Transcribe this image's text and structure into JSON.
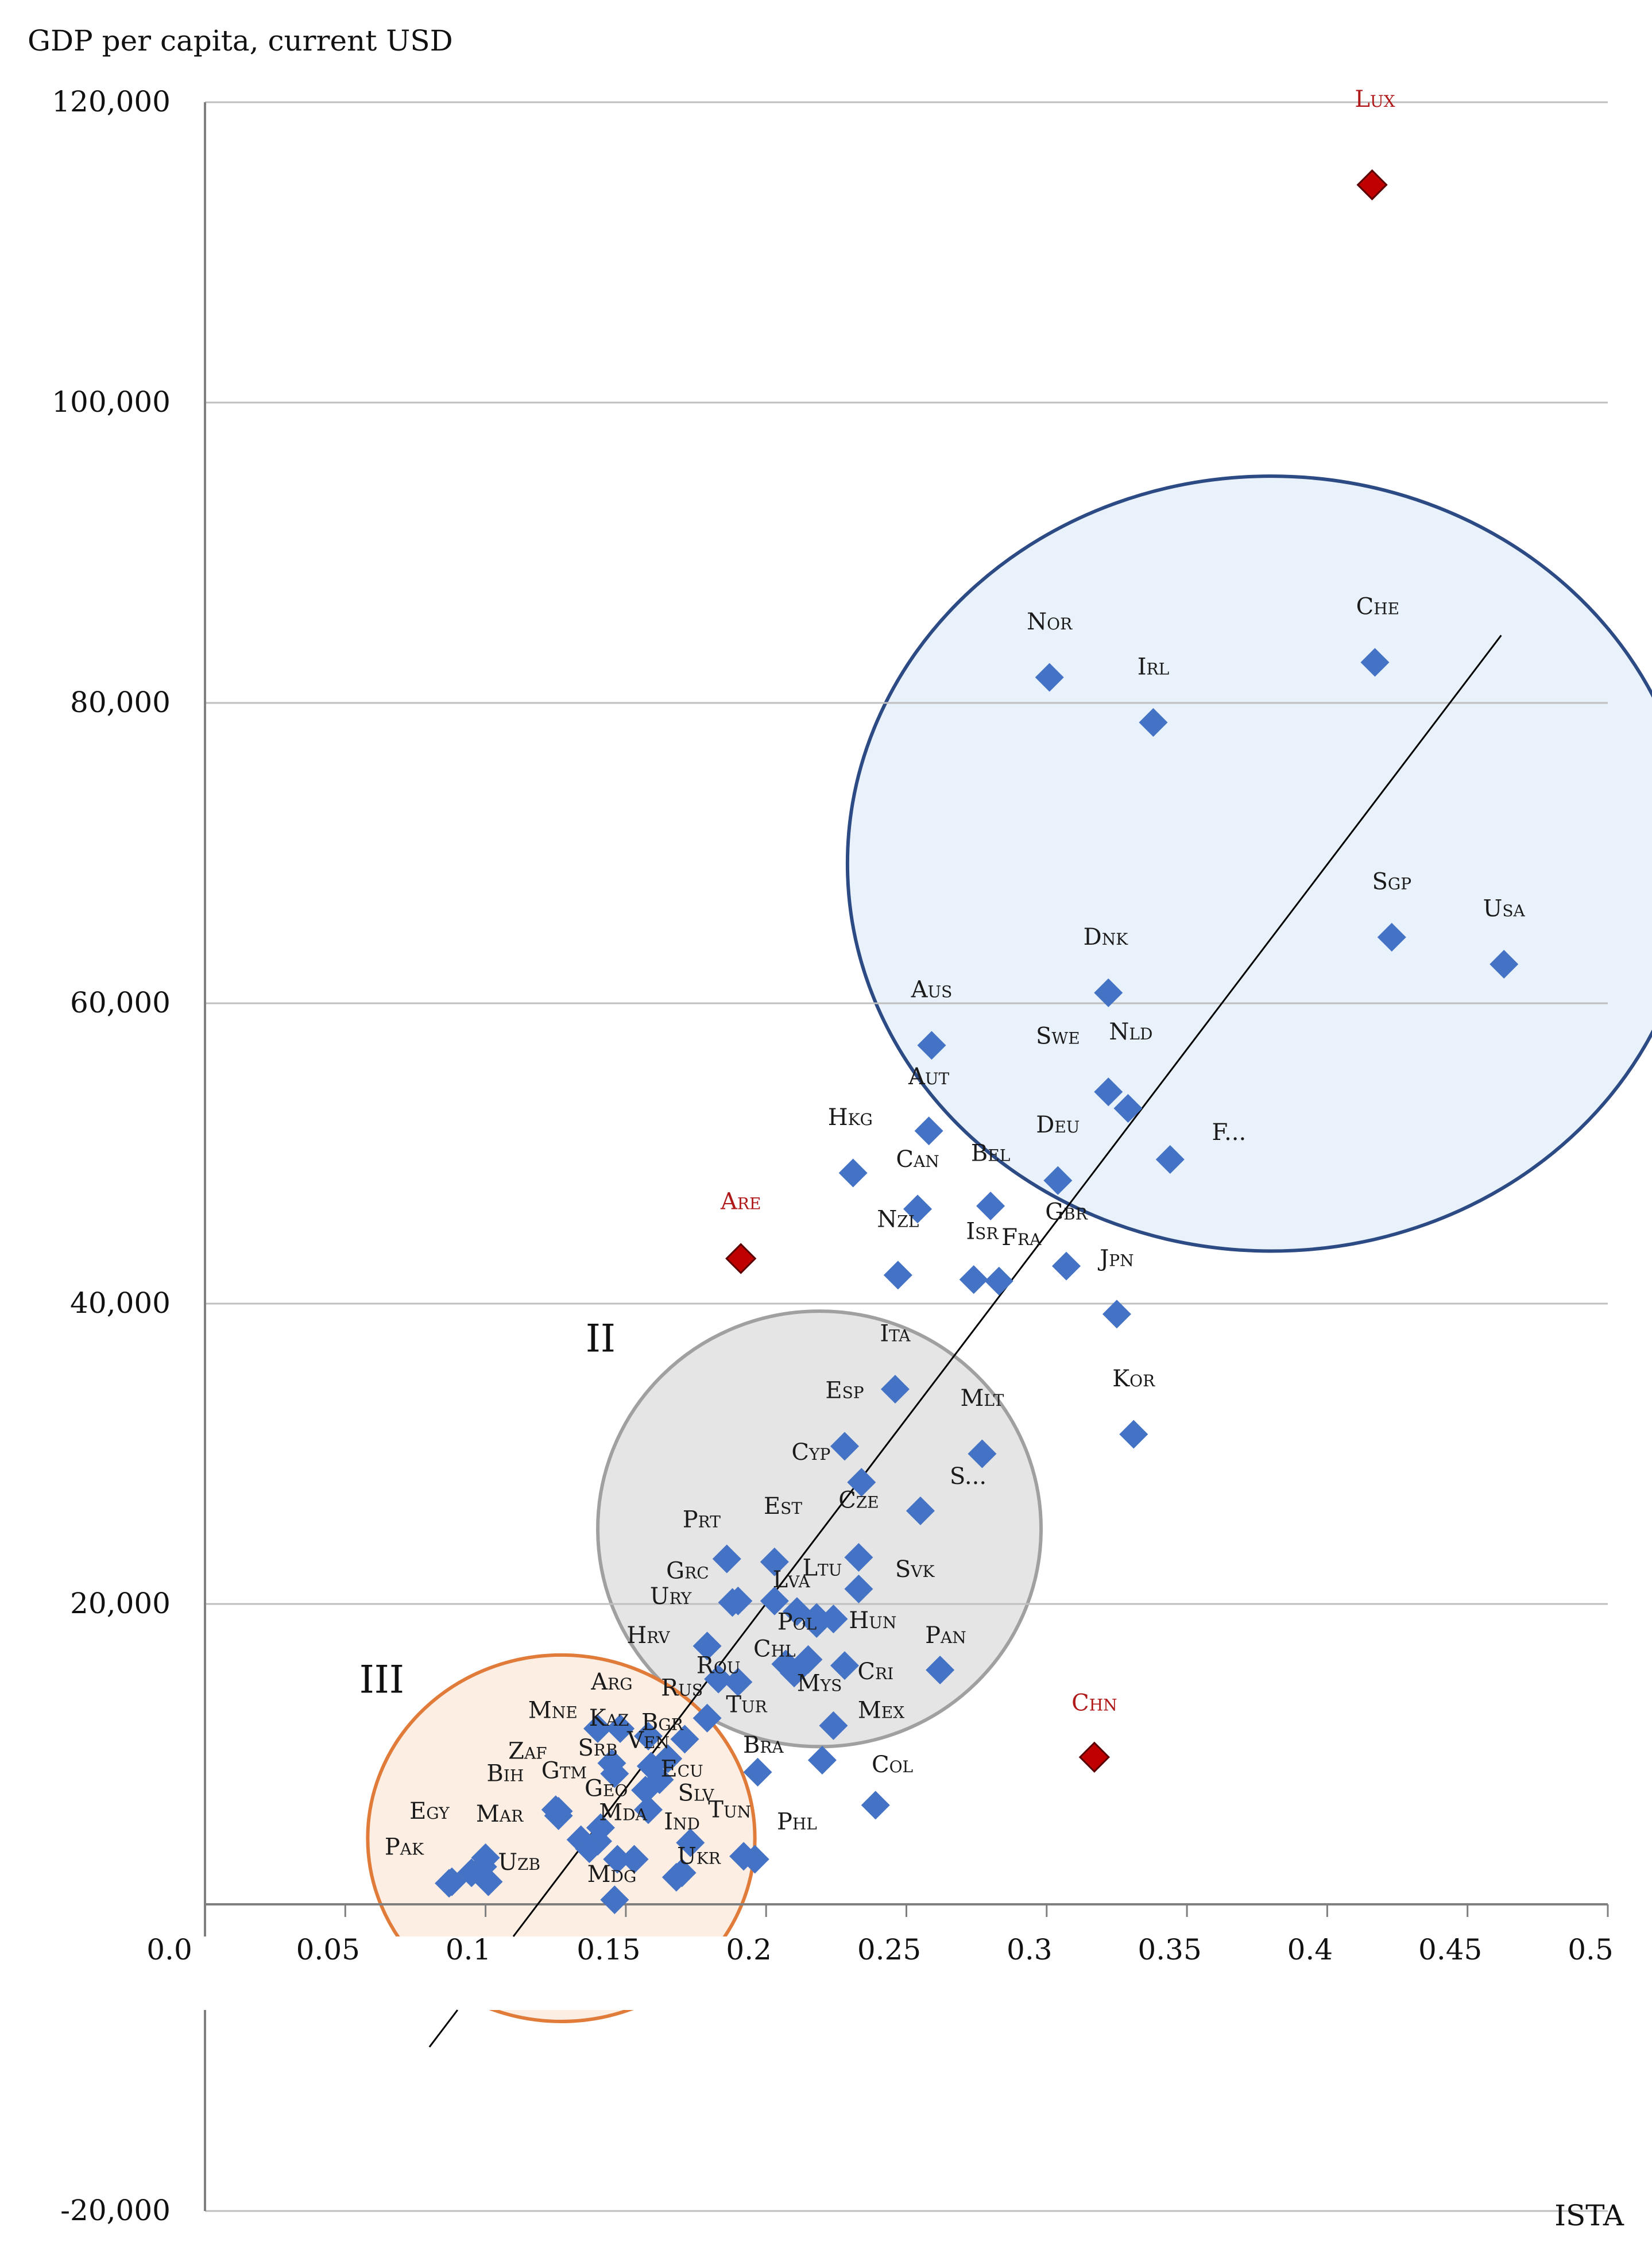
{
  "chart_data": {
    "type": "scatter",
    "ylabel": "GDP per capita, current USD",
    "xlabel": "ISTA",
    "xlim": [
      0.0,
      0.5
    ],
    "ylim": [
      -20000,
      120000
    ],
    "x_ticks": [
      "0.0",
      "0.05",
      "0.1",
      "0.15",
      "0.2",
      "0.25",
      "0.3",
      "0.35",
      "0.4",
      "0.45",
      "0.5"
    ],
    "y_ticks": [
      "120,000",
      "100,000",
      "80,000",
      "60,000",
      "40,000",
      "20,000",
      "-20,000"
    ],
    "trend_line": {
      "x": [
        0.08,
        0.462
      ],
      "y": [
        -9500,
        84500
      ]
    },
    "clusters": [
      {
        "name": "I",
        "label": "",
        "cx": 0.38,
        "cy": 69300,
        "rx": 0.151,
        "ry": 25800,
        "stroke": "#2c4a84",
        "fill": "#e9f2fb"
      },
      {
        "name": "II",
        "label": "II",
        "cx": 0.219,
        "cy": 25000,
        "rx": 0.079,
        "ry": 14500,
        "stroke": "#a0a0a0",
        "fill": "#e5e5e5"
      },
      {
        "name": "III",
        "label": "III",
        "cx": 0.127,
        "cy": 4400,
        "rx": 0.069,
        "ry": 12200,
        "stroke": "#e07b39",
        "fill": "#fdeee3"
      }
    ],
    "cluster_label_positions": [
      {
        "text": "II",
        "x": 0.141,
        "y": 36800
      },
      {
        "text": "III",
        "x": 0.063,
        "y": 14100
      }
    ],
    "colors": {
      "point": "#4472c4",
      "outlier": "#c00000",
      "axis": "#7f7f7f",
      "grid": "#bfbfbf"
    },
    "points": [
      {
        "label": "Lux",
        "x": 0.416,
        "y": 114500,
        "outlier": true,
        "lx": 0.417,
        "ly": 119700
      },
      {
        "label": "Che",
        "x": 0.417,
        "y": 82700,
        "lx": 0.418,
        "ly": 85900
      },
      {
        "label": "Nor",
        "x": 0.301,
        "y": 81700,
        "lx": 0.301,
        "ly": 84900
      },
      {
        "label": "Irl",
        "x": 0.338,
        "y": 78700,
        "lx": 0.338,
        "ly": 81900
      },
      {
        "label": "Sgp",
        "x": 0.423,
        "y": 64400,
        "lx": 0.423,
        "ly": 67600
      },
      {
        "label": "Usa",
        "x": 0.463,
        "y": 62600,
        "lx": 0.463,
        "ly": 65800
      },
      {
        "label": "Dnk",
        "x": 0.322,
        "y": 60700,
        "lx": 0.321,
        "ly": 63900
      },
      {
        "label": "Aus",
        "x": 0.259,
        "y": 57200,
        "lx": 0.259,
        "ly": 60400
      },
      {
        "label": "Swe",
        "x": 0.322,
        "y": 54100,
        "lx": 0.304,
        "ly": 57300
      },
      {
        "label": "Nld",
        "x": 0.329,
        "y": 53000,
        "lx": 0.33,
        "ly": 57600
      },
      {
        "label": "Aut",
        "x": 0.258,
        "y": 51500,
        "lx": 0.258,
        "ly": 54600
      },
      {
        "label": "Hkg",
        "x": 0.231,
        "y": 48700,
        "lx": 0.23,
        "ly": 51900
      },
      {
        "label": "Deu",
        "x": 0.304,
        "y": 48200,
        "lx": 0.304,
        "ly": 51400
      },
      {
        "label": "F...",
        "x": 0.344,
        "y": 49600,
        "lx": 0.365,
        "ly": 50900
      },
      {
        "label": "Can",
        "x": 0.254,
        "y": 46300,
        "lx": 0.254,
        "ly": 49100
      },
      {
        "label": "Bel",
        "x": 0.28,
        "y": 46500,
        "lx": 0.28,
        "ly": 49500
      },
      {
        "label": "Gbr",
        "x": 0.307,
        "y": 42500,
        "lx": 0.307,
        "ly": 45600
      },
      {
        "label": "Nzl",
        "x": 0.247,
        "y": 41900,
        "lx": 0.247,
        "ly": 45100
      },
      {
        "label": "Isr",
        "x": 0.274,
        "y": 41600,
        "lx": 0.277,
        "ly": 44300
      },
      {
        "label": "Fra",
        "x": 0.283,
        "y": 41500,
        "lx": 0.291,
        "ly": 43900
      },
      {
        "label": "Jpn",
        "x": 0.325,
        "y": 39300,
        "lx": 0.325,
        "ly": 42500
      },
      {
        "label": "Are",
        "x": 0.191,
        "y": 43000,
        "outlier": true,
        "lx": 0.191,
        "ly": 46300
      },
      {
        "label": "Ita",
        "x": 0.246,
        "y": 34300,
        "lx": 0.246,
        "ly": 37500
      },
      {
        "label": "Kor",
        "x": 0.331,
        "y": 31300,
        "lx": 0.331,
        "ly": 34500
      },
      {
        "label": "Esp",
        "x": 0.228,
        "y": 30500,
        "lx": 0.228,
        "ly": 33700
      },
      {
        "label": "Mlt",
        "x": 0.277,
        "y": 30000,
        "lx": 0.277,
        "ly": 33200
      },
      {
        "label": "Cyp",
        "x": 0.234,
        "y": 28100,
        "lx": 0.216,
        "ly": 29600
      },
      {
        "label": "S...",
        "x": 0.255,
        "y": 26200,
        "lx": 0.272,
        "ly": 28000
      },
      {
        "label": "Cze",
        "x": 0.233,
        "y": 23100,
        "lx": 0.233,
        "ly": 26400
      },
      {
        "label": "Prt",
        "x": 0.186,
        "y": 23000,
        "lx": 0.177,
        "ly": 25100
      },
      {
        "label": "Est",
        "x": 0.203,
        "y": 22800,
        "lx": 0.206,
        "ly": 26000
      },
      {
        "label": "Svk",
        "x": 0.233,
        "y": 21000,
        "lx": 0.253,
        "ly": 21800
      },
      {
        "label": "Ltu",
        "x": 0.211,
        "y": 19500,
        "lx": 0.22,
        "ly": 21900
      },
      {
        "label": "Lva",
        "x": 0.203,
        "y": 20200,
        "lx": 0.209,
        "ly": 21100
      },
      {
        "label": "Grc",
        "x": 0.19,
        "y": 20200,
        "lx": 0.172,
        "ly": 21700
      },
      {
        "label": "Ury",
        "x": 0.188,
        "y": 20100,
        "lx": 0.166,
        "ly": 20000
      },
      {
        "label": "Pol",
        "x": 0.218,
        "y": 19100,
        "lx": 0.211,
        "ly": 18300
      },
      {
        "label": "Hun",
        "x": 0.218,
        "y": 18700,
        "lx": 0.238,
        "ly": 18400
      },
      {
        "label": "Pan",
        "x": 0.262,
        "y": 15600,
        "lx": 0.264,
        "ly": 17400
      },
      {
        "label": "Hrv",
        "x": 0.179,
        "y": 17200,
        "lx": 0.158,
        "ly": 17400
      },
      {
        "label": "Chl",
        "x": 0.207,
        "y": 16000,
        "lx": 0.203,
        "ly": 16500
      },
      {
        "label": "Cri",
        "x": 0.228,
        "y": 15900,
        "lx": 0.239,
        "ly": 15000
      },
      {
        "label": "Rou",
        "x": 0.183,
        "y": 15000,
        "lx": 0.183,
        "ly": 15400
      },
      {
        "label": "Arg",
        "x": 0.148,
        "y": 11700,
        "lx": 0.145,
        "ly": 14300
      },
      {
        "label": "Rus",
        "x": 0.179,
        "y": 12400,
        "lx": 0.17,
        "ly": 13900
      },
      {
        "label": "Tur",
        "x": 0.19,
        "y": 14800,
        "lx": 0.193,
        "ly": 12800
      },
      {
        "label": "Mys",
        "x": 0.21,
        "y": 15400,
        "lx": 0.219,
        "ly": 14200
      },
      {
        "label": "Mex",
        "x": 0.224,
        "y": 11900,
        "lx": 0.241,
        "ly": 12400
      },
      {
        "label": "Mne",
        "x": 0.14,
        "y": 11700,
        "lx": 0.124,
        "ly": 12400
      },
      {
        "label": "Kaz",
        "x": 0.158,
        "y": 11200,
        "lx": 0.144,
        "ly": 11900
      },
      {
        "label": "Bgr",
        "x": 0.171,
        "y": 11000,
        "lx": 0.163,
        "ly": 11600
      },
      {
        "label": "Ven",
        "x": 0.159,
        "y": 9200,
        "lx": 0.158,
        "ly": 10400
      },
      {
        "label": "Srb",
        "x": 0.145,
        "y": 9400,
        "lx": 0.14,
        "ly": 9900
      },
      {
        "label": "Zaf",
        "x": 0.146,
        "y": 8700,
        "lx": 0.115,
        "ly": 9700
      },
      {
        "label": "Bra",
        "x": 0.197,
        "y": 8800,
        "lx": 0.199,
        "ly": 10100
      },
      {
        "label": "Ecu",
        "x": 0.162,
        "y": 8300,
        "lx": 0.17,
        "ly": 8500
      },
      {
        "label": "Col",
        "x": 0.239,
        "y": 6600,
        "lx": 0.245,
        "ly": 8800
      },
      {
        "label": "Bih",
        "x": 0.125,
        "y": 6300,
        "lx": 0.107,
        "ly": 8200
      },
      {
        "label": "Gtm",
        "x": 0.126,
        "y": 6200,
        "lx": 0.128,
        "ly": 8400
      },
      {
        "label": "Geo",
        "x": 0.141,
        "y": 5100,
        "lx": 0.143,
        "ly": 7200
      },
      {
        "label": "Slv",
        "x": 0.158,
        "y": 6300,
        "lx": 0.175,
        "ly": 6900
      },
      {
        "label": "Egy",
        "x": 0.087,
        "y": 1400,
        "lx": 0.08,
        "ly": 5700
      },
      {
        "label": "Mar",
        "x": 0.1,
        "y": 3100,
        "lx": 0.105,
        "ly": 5500
      },
      {
        "label": "Mda",
        "x": 0.14,
        "y": 4200,
        "lx": 0.149,
        "ly": 5600
      },
      {
        "label": "Tun",
        "x": 0.173,
        "y": 4100,
        "lx": 0.187,
        "ly": 5800
      },
      {
        "label": "Ind",
        "x": 0.153,
        "y": 3000,
        "lx": 0.17,
        "ly": 5000
      },
      {
        "label": "Phl",
        "x": 0.196,
        "y": 3000,
        "lx": 0.211,
        "ly": 5000
      },
      {
        "label": "Pak",
        "x": 0.088,
        "y": 1500,
        "lx": 0.071,
        "ly": 3300
      },
      {
        "label": "Uzb",
        "x": 0.095,
        "y": 2100,
        "lx": 0.112,
        "ly": 2300
      },
      {
        "label": "Ukr",
        "x": 0.17,
        "y": 2100,
        "lx": 0.176,
        "ly": 2700
      },
      {
        "label": "Mdg",
        "x": 0.146,
        "y": 300,
        "lx": 0.145,
        "ly": 1500
      },
      {
        "label": "Chn",
        "x": 0.317,
        "y": 9800,
        "outlier": true,
        "lx": 0.317,
        "ly": 12900
      },
      {
        "label": "",
        "x": 0.101,
        "y": 1500
      },
      {
        "label": "",
        "x": 0.099,
        "y": 2500
      },
      {
        "label": "",
        "x": 0.126,
        "y": 5900
      },
      {
        "label": "",
        "x": 0.134,
        "y": 4300
      },
      {
        "label": "",
        "x": 0.137,
        "y": 3700
      },
      {
        "label": "",
        "x": 0.147,
        "y": 3000
      },
      {
        "label": "",
        "x": 0.157,
        "y": 7600
      },
      {
        "label": "",
        "x": 0.165,
        "y": 9700
      },
      {
        "label": "",
        "x": 0.168,
        "y": 1800
      },
      {
        "label": "",
        "x": 0.192,
        "y": 3200
      },
      {
        "label": "",
        "x": 0.215,
        "y": 16300
      },
      {
        "label": "",
        "x": 0.22,
        "y": 9600
      },
      {
        "label": "",
        "x": 0.224,
        "y": 19000
      }
    ]
  }
}
